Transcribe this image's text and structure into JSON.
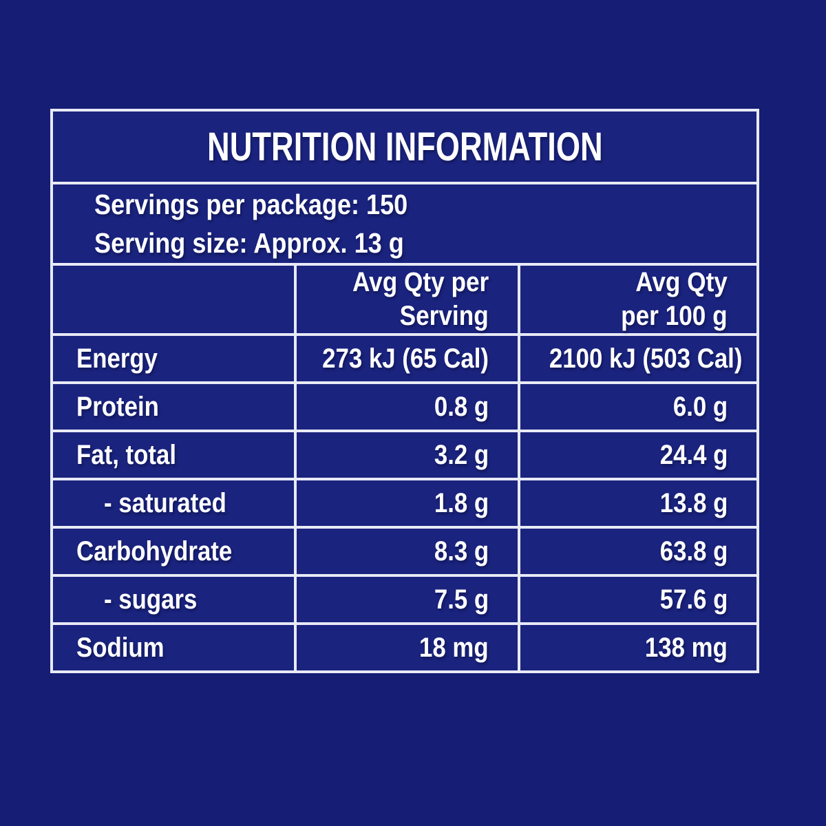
{
  "colors": {
    "page_background": "#161D74",
    "panel_background": "#1A237E",
    "border": "#E8EAF6",
    "text": "#FFFFFF"
  },
  "title": "NUTRITION INFORMATION",
  "serving_info": {
    "servings_per_package": "Servings per package: 150",
    "serving_size": "Serving size: Approx. 13 g"
  },
  "table": {
    "header": {
      "per_serving_line1": "Avg Qty per",
      "per_serving_line2": "Serving",
      "per_100g_line1": "Avg Qty",
      "per_100g_line2": "per 100 g"
    },
    "rows": [
      {
        "label": "Energy",
        "per_serving": "273 kJ (65 Cal)",
        "per_100g": "2100 kJ (503 Cal)"
      },
      {
        "label": "Protein",
        "per_serving": "0.8 g",
        "per_100g": "6.0 g"
      },
      {
        "label": "Fat, total",
        "per_serving": "3.2 g",
        "per_100g": "24.4 g"
      },
      {
        "label": "- saturated",
        "per_serving": "1.8 g",
        "per_100g": "13.8 g"
      },
      {
        "label": "Carbohydrate",
        "per_serving": "8.3 g",
        "per_100g": "63.8 g"
      },
      {
        "label": "- sugars",
        "per_serving": "7.5 g",
        "per_100g": "57.6 g"
      },
      {
        "label": "Sodium",
        "per_serving": "18 mg",
        "per_100g": "138 mg"
      }
    ]
  }
}
